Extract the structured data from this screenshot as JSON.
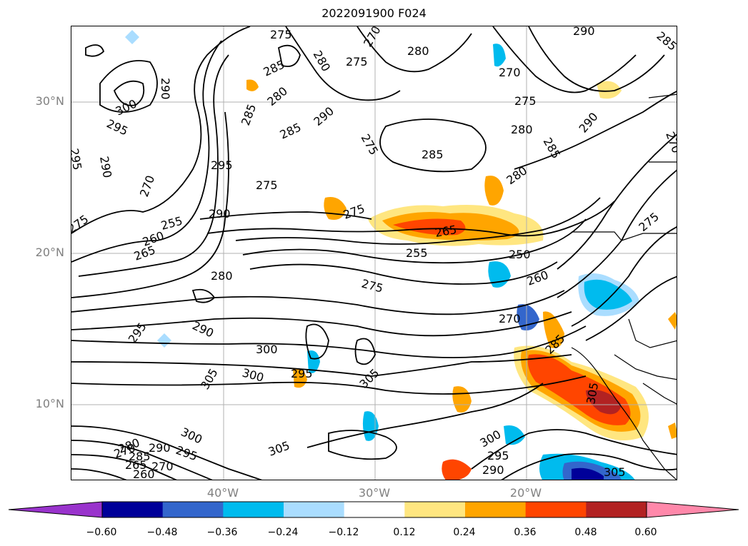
{
  "title": "2022091900 F024",
  "latitude_labels": [
    "30°N",
    "20°N",
    "10°N"
  ],
  "longitude_labels": [
    "40°W",
    "30°W",
    "20°W"
  ],
  "contour_labels": [
    "275",
    "280",
    "270",
    "285",
    "290",
    "295",
    "300",
    "305",
    "265",
    "260",
    "255",
    "250"
  ],
  "colorbar": {
    "ticks": [
      "−0.60",
      "−0.48",
      "−0.36",
      "−0.24",
      "−0.12",
      "0.12",
      "0.24",
      "0.36",
      "0.48",
      "0.60"
    ],
    "colors": [
      "#9933cc",
      "#000099",
      "#3366cc",
      "#00bbee",
      "#aaddff",
      "#ffffff",
      "#ffe680",
      "#ffa500",
      "#ff4500",
      "#b22222",
      "#ff88aa"
    ]
  }
}
